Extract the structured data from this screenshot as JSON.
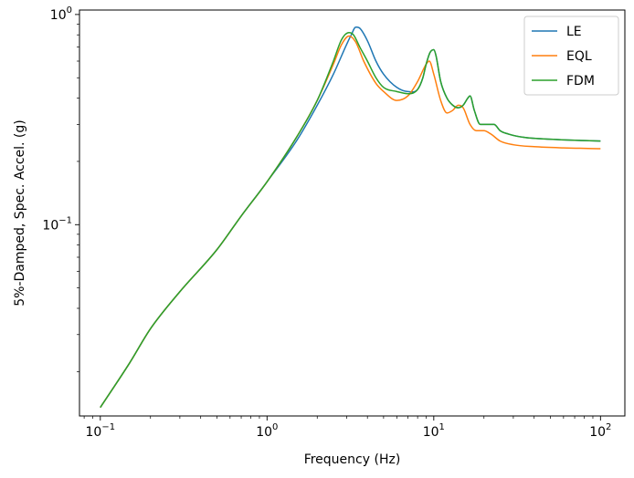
{
  "chart_data": {
    "type": "line",
    "title": "",
    "xlabel": "Frequency (Hz)",
    "ylabel": "5%-Damped, Spec. Accel. (g)",
    "xscale": "log",
    "yscale": "log",
    "xlim": [
      0.075,
      140
    ],
    "ylim": [
      0.0123,
      1.05
    ],
    "grid": false,
    "legend_position": "top-right",
    "x_ticks": [
      {
        "value": 0.1,
        "base": "10",
        "exp": "−1"
      },
      {
        "value": 1,
        "base": "10",
        "exp": "0"
      },
      {
        "value": 10,
        "base": "10",
        "exp": "1"
      },
      {
        "value": 100,
        "base": "10",
        "exp": "2"
      }
    ],
    "y_ticks": [
      {
        "value": 0.1,
        "base": "10",
        "exp": "−1"
      },
      {
        "value": 1,
        "base": "10",
        "exp": "0"
      }
    ],
    "series": [
      {
        "name": "LE",
        "color": "#1f77b4",
        "x": [
          0.1,
          0.15,
          0.2,
          0.3,
          0.5,
          0.7,
          1.0,
          1.5,
          2.0,
          2.5,
          3.0,
          3.2,
          3.4,
          3.6,
          4.0,
          4.5,
          5.0,
          6.0,
          7.0,
          8.0,
          8.6,
          9.0,
          9.5,
          10.0,
          10.3,
          11.0,
          12.0,
          13.0,
          14.0,
          15.0,
          16.0,
          16.5,
          17.5,
          19.0,
          21.0,
          23.0,
          25.0,
          28.0,
          35.0,
          50.0,
          70.0,
          100.0
        ],
        "y": [
          0.0135,
          0.022,
          0.032,
          0.048,
          0.076,
          0.11,
          0.16,
          0.25,
          0.37,
          0.52,
          0.72,
          0.8,
          0.87,
          0.86,
          0.75,
          0.6,
          0.52,
          0.45,
          0.43,
          0.44,
          0.5,
          0.58,
          0.66,
          0.68,
          0.64,
          0.48,
          0.4,
          0.37,
          0.36,
          0.37,
          0.4,
          0.41,
          0.35,
          0.3,
          0.3,
          0.3,
          0.28,
          0.27,
          0.26,
          0.255,
          0.252,
          0.25
        ]
      },
      {
        "name": "EQL",
        "color": "#ff7f0e",
        "x": [
          0.1,
          0.15,
          0.2,
          0.3,
          0.5,
          0.7,
          1.0,
          1.5,
          2.0,
          2.5,
          2.8,
          3.1,
          3.4,
          3.8,
          4.5,
          5.0,
          6.0,
          7.0,
          8.0,
          9.0,
          9.4,
          10.0,
          11.0,
          12.0,
          13.0,
          14.0,
          15.0,
          16.5,
          18.0,
          20.0,
          22.0,
          25.0,
          30.0,
          40.0,
          60.0,
          100.0
        ],
        "y": [
          0.0135,
          0.022,
          0.032,
          0.048,
          0.076,
          0.11,
          0.16,
          0.26,
          0.39,
          0.58,
          0.72,
          0.79,
          0.74,
          0.6,
          0.47,
          0.43,
          0.39,
          0.41,
          0.48,
          0.58,
          0.6,
          0.52,
          0.39,
          0.34,
          0.35,
          0.37,
          0.36,
          0.3,
          0.28,
          0.28,
          0.27,
          0.25,
          0.24,
          0.235,
          0.232,
          0.23
        ]
      },
      {
        "name": "FDM",
        "color": "#2ca02c",
        "x": [
          0.1,
          0.15,
          0.2,
          0.3,
          0.5,
          0.7,
          1.0,
          1.5,
          2.0,
          2.5,
          2.8,
          3.1,
          3.3,
          3.6,
          4.0,
          4.5,
          5.0,
          6.0,
          7.0,
          8.0,
          8.6,
          9.0,
          9.5,
          10.0,
          10.3,
          11.0,
          12.0,
          13.0,
          14.0,
          15.0,
          16.0,
          16.5,
          17.5,
          19.0,
          21.0,
          23.0,
          25.0,
          28.0,
          35.0,
          50.0,
          70.0,
          100.0
        ],
        "y": [
          0.0135,
          0.022,
          0.032,
          0.048,
          0.076,
          0.11,
          0.16,
          0.26,
          0.39,
          0.6,
          0.76,
          0.82,
          0.8,
          0.7,
          0.6,
          0.5,
          0.45,
          0.43,
          0.42,
          0.44,
          0.5,
          0.58,
          0.66,
          0.68,
          0.64,
          0.48,
          0.4,
          0.37,
          0.36,
          0.37,
          0.4,
          0.41,
          0.35,
          0.3,
          0.3,
          0.3,
          0.28,
          0.27,
          0.26,
          0.255,
          0.252,
          0.25
        ]
      }
    ]
  }
}
